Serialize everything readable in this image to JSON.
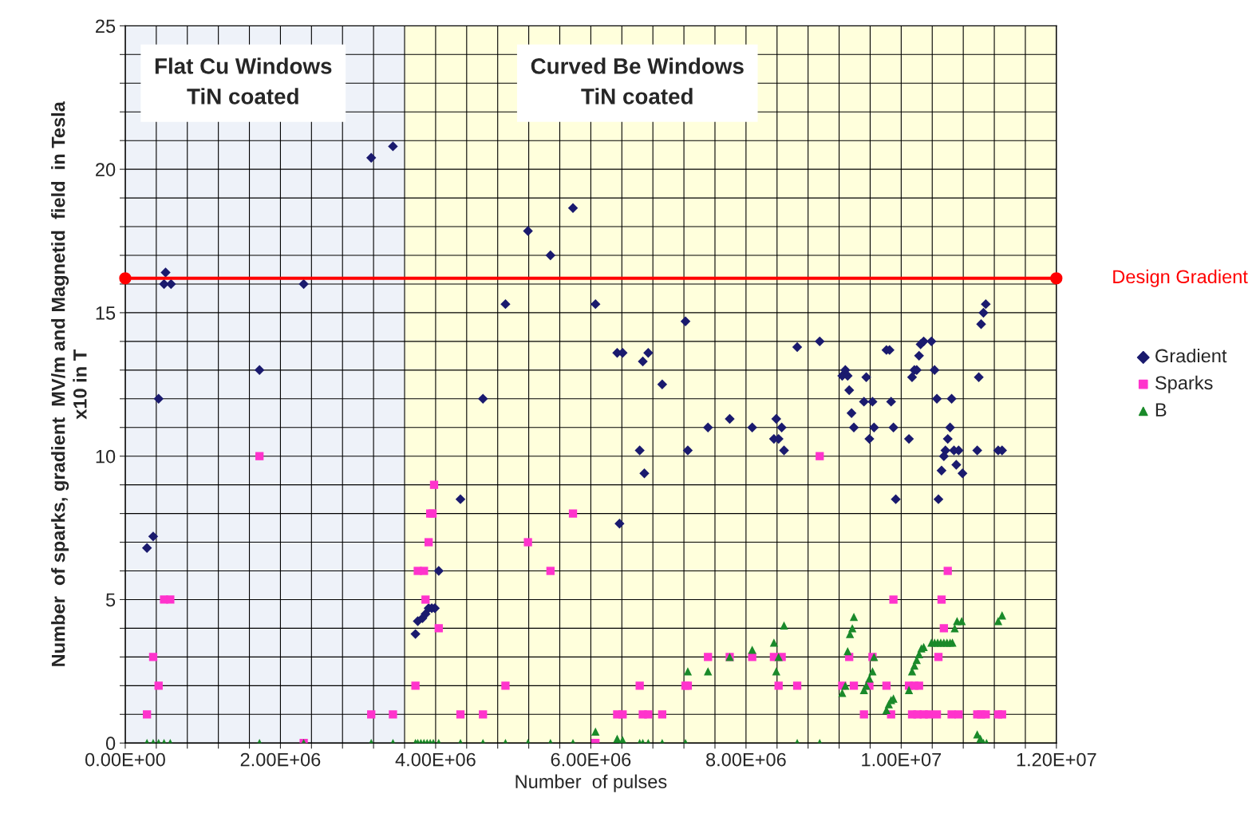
{
  "chart_data": {
    "type": "scatter",
    "xlabel": "Number  of pulses",
    "ylabel": "Number  of sparks, gradient  MV/m and Magnetid  field  in Tesla\nx10 in T",
    "xlim": [
      0,
      12000000
    ],
    "ylim": [
      0,
      25
    ],
    "xticks": [
      {
        "value": 0,
        "label": "0.00E+00"
      },
      {
        "value": 400000,
        "label": null
      },
      {
        "value": 800000,
        "label": null
      },
      {
        "value": 1200000,
        "label": null
      },
      {
        "value": 1600000,
        "label": null
      },
      {
        "value": 2000000,
        "label": "2.00E+06"
      },
      {
        "value": 2400000,
        "label": null
      },
      {
        "value": 2800000,
        "label": null
      },
      {
        "value": 3200000,
        "label": null
      },
      {
        "value": 3600000,
        "label": null
      },
      {
        "value": 4000000,
        "label": "4.00E+06"
      },
      {
        "value": 4400000,
        "label": null
      },
      {
        "value": 4800000,
        "label": null
      },
      {
        "value": 5200000,
        "label": null
      },
      {
        "value": 5600000,
        "label": null
      },
      {
        "value": 6000000,
        "label": "6.00E+06"
      },
      {
        "value": 6400000,
        "label": null
      },
      {
        "value": 6800000,
        "label": null
      },
      {
        "value": 7200000,
        "label": null
      },
      {
        "value": 7600000,
        "label": null
      },
      {
        "value": 8000000,
        "label": "8.00E+06"
      },
      {
        "value": 8400000,
        "label": null
      },
      {
        "value": 8800000,
        "label": null
      },
      {
        "value": 9200000,
        "label": null
      },
      {
        "value": 9600000,
        "label": null
      },
      {
        "value": 10000000,
        "label": "1.00E+07"
      },
      {
        "value": 10400000,
        "label": null
      },
      {
        "value": 10800000,
        "label": null
      },
      {
        "value": 11200000,
        "label": null
      },
      {
        "value": 11600000,
        "label": null
      },
      {
        "value": 12000000,
        "label": "1.20E+07"
      }
    ],
    "yticks": [
      0,
      {
        "value": 1,
        "label": null
      },
      {
        "value": 2,
        "label": null
      },
      {
        "value": 3,
        "label": null
      },
      {
        "value": 4,
        "label": null
      },
      5,
      {
        "value": 6,
        "label": null
      },
      {
        "value": 7,
        "label": null
      },
      {
        "value": 8,
        "label": null
      },
      {
        "value": 9,
        "label": null
      },
      10,
      {
        "value": 11,
        "label": null
      },
      {
        "value": 12,
        "label": null
      },
      {
        "value": 13,
        "label": null
      },
      {
        "value": 14,
        "label": null
      },
      15,
      {
        "value": 16,
        "label": null
      },
      {
        "value": 17,
        "label": null
      },
      {
        "value": 18,
        "label": null
      },
      {
        "value": 19,
        "label": null
      },
      20,
      {
        "value": 21,
        "label": null
      },
      {
        "value": 22,
        "label": null
      },
      {
        "value": 23,
        "label": null
      },
      {
        "value": 24,
        "label": null
      },
      25
    ],
    "grid": true,
    "legend": "right",
    "bands": [
      {
        "axis": "x",
        "from": 0,
        "to": 3600000,
        "label": "Flat Cu Windows\nTiN coated",
        "color": "#eef2f9"
      },
      {
        "axis": "x",
        "from": 3600000,
        "to": 12000000,
        "label": "Curved Be Windows\nTiN coated",
        "color": "#ffffdc"
      }
    ],
    "series": [
      {
        "name": "Design Gradient",
        "type": "line",
        "color": "#ff0000",
        "marker": "circle",
        "line_style": "solid",
        "x": [
          0,
          12000000
        ],
        "values": [
          16.2,
          16.2
        ]
      },
      {
        "name": "Gradient",
        "color": "#1a1a6e",
        "marker": "diamond",
        "x": [
          280000,
          360000,
          430000,
          520000,
          500000,
          590000,
          1730000,
          2300000,
          3170000,
          3450000,
          3740000,
          3770000,
          3830000,
          3870000,
          3910000,
          3950000,
          3990000,
          4040000,
          4320000,
          4610000,
          4900000,
          5190000,
          5480000,
          5770000,
          6060000,
          6340000,
          6410000,
          6370000,
          6630000,
          6670000,
          6690000,
          6740000,
          6920000,
          7220000,
          7250000,
          7510000,
          7790000,
          8080000,
          8390000,
          8360000,
          8420000,
          8460000,
          8490000,
          8660000,
          8950000,
          9240000,
          9280000,
          9310000,
          9330000,
          9360000,
          9390000,
          9520000,
          9550000,
          9590000,
          9630000,
          9650000,
          9810000,
          9850000,
          9870000,
          9900000,
          9930000,
          10100000,
          10140000,
          10170000,
          10200000,
          10230000,
          10250000,
          10290000,
          10390000,
          10430000,
          10460000,
          10480000,
          10520000,
          10550000,
          10570000,
          10600000,
          10630000,
          10650000,
          10680000,
          10710000,
          10740000,
          10790000,
          10980000,
          11000000,
          11030000,
          11060000,
          11090000,
          11250000,
          11300000
        ],
        "values": [
          6.8,
          7.2,
          12.0,
          16.4,
          16.0,
          16.0,
          13.0,
          16.0,
          20.4,
          20.8,
          3.8,
          4.25,
          4.35,
          4.5,
          4.7,
          4.7,
          4.7,
          6.0,
          8.5,
          12.0,
          15.3,
          17.85,
          17.0,
          18.65,
          15.3,
          13.6,
          13.6,
          7.65,
          10.2,
          13.3,
          9.4,
          13.6,
          12.5,
          14.7,
          10.2,
          11.0,
          11.3,
          11.0,
          11.3,
          10.6,
          10.6,
          11.0,
          10.2,
          13.8,
          14.0,
          12.8,
          13.0,
          12.8,
          12.3,
          11.5,
          11.0,
          11.9,
          12.75,
          10.6,
          11.9,
          11.0,
          13.7,
          13.7,
          11.9,
          11.0,
          8.5,
          10.6,
          12.75,
          13.0,
          13.0,
          13.5,
          13.9,
          14.0,
          14.0,
          13.0,
          12.0,
          8.5,
          9.5,
          10.0,
          10.2,
          10.6,
          11.0,
          12.0,
          10.2,
          9.7,
          10.2,
          9.4,
          10.2,
          12.75,
          14.6,
          15.0,
          15.3,
          10.2,
          10.2
        ]
      },
      {
        "name": "Sparks",
        "color": "#ff33cc",
        "marker": "square",
        "x": [
          280000,
          360000,
          430000,
          500000,
          580000,
          1730000,
          2300000,
          3170000,
          3450000,
          3740000,
          3770000,
          3850000,
          3870000,
          3910000,
          3930000,
          3960000,
          3980000,
          4040000,
          4320000,
          4610000,
          4900000,
          5190000,
          5480000,
          5770000,
          6060000,
          6340000,
          6410000,
          6630000,
          6670000,
          6740000,
          6920000,
          7220000,
          7250000,
          7510000,
          7790000,
          8080000,
          8360000,
          8420000,
          8460000,
          8660000,
          8950000,
          9240000,
          9330000,
          9390000,
          9520000,
          9590000,
          9630000,
          9810000,
          9870000,
          9900000,
          10100000,
          10170000,
          10230000,
          10140000,
          10210000,
          10290000,
          10360000,
          10460000,
          10480000,
          10520000,
          10550000,
          10600000,
          10650000,
          10740000,
          10980000,
          11030000,
          11090000,
          11250000,
          11300000
        ],
        "values": [
          1,
          3,
          2,
          5,
          5,
          10,
          0,
          1,
          1,
          2,
          6,
          6,
          5,
          7,
          8,
          8,
          9,
          4,
          1,
          1,
          2,
          7,
          6,
          8,
          0,
          1,
          1,
          2,
          1,
          1,
          1,
          2,
          2,
          3,
          3,
          3,
          3,
          2,
          3,
          2,
          10,
          2,
          3,
          2,
          1,
          2,
          3,
          2,
          1,
          5,
          2,
          2,
          2,
          1,
          1,
          1,
          1,
          1,
          3,
          5,
          4,
          6,
          1,
          1,
          1,
          1,
          1,
          1,
          1
        ]
      },
      {
        "name": "B",
        "color": "#1a8a2a",
        "marker": "triangle",
        "x": [
          280000,
          360000,
          430000,
          500000,
          580000,
          1730000,
          2300000,
          3170000,
          3450000,
          3740000,
          3770000,
          3810000,
          3850000,
          3890000,
          3930000,
          3970000,
          4040000,
          4320000,
          4610000,
          4900000,
          5190000,
          5480000,
          5770000,
          6060000,
          6340000,
          6410000,
          6630000,
          6670000,
          6740000,
          6920000,
          7220000,
          7250000,
          7510000,
          7790000,
          8080000,
          8360000,
          8390000,
          8420000,
          8490000,
          8660000,
          8950000,
          9240000,
          9280000,
          9310000,
          9340000,
          9370000,
          9390000,
          9520000,
          9550000,
          9590000,
          9630000,
          9650000,
          9810000,
          9840000,
          9870000,
          9900000,
          10100000,
          10140000,
          10170000,
          10200000,
          10230000,
          10260000,
          10290000,
          10390000,
          10430000,
          10470000,
          10510000,
          10550000,
          10590000,
          10630000,
          10660000,
          10690000,
          10720000,
          10780000,
          10980000,
          11020000,
          11060000,
          11100000,
          11250000,
          11300000
        ],
        "values": [
          0,
          0,
          0,
          0,
          0,
          0,
          0,
          0,
          0,
          0,
          0,
          0,
          0,
          0,
          0,
          0,
          0,
          0,
          0,
          0,
          0,
          0,
          0,
          0.4,
          0.15,
          0.1,
          0,
          0,
          0,
          0,
          0,
          2.5,
          2.5,
          3.0,
          3.25,
          3.5,
          2.5,
          3.0,
          4.1,
          0,
          0,
          1.75,
          2.0,
          3.2,
          3.8,
          4.0,
          4.4,
          1.85,
          2.0,
          2.25,
          2.5,
          3.0,
          1.15,
          1.35,
          1.5,
          1.55,
          1.85,
          2.5,
          2.7,
          2.9,
          3.1,
          3.3,
          3.35,
          3.5,
          3.5,
          3.5,
          3.5,
          3.5,
          3.5,
          3.5,
          3.5,
          4.0,
          4.25,
          4.25,
          0.3,
          0.15,
          0,
          0,
          4.25,
          4.45
        ]
      }
    ]
  }
}
